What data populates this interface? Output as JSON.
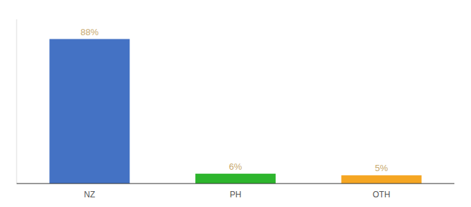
{
  "chart_data": {
    "type": "bar",
    "categories": [
      "NZ",
      "PH",
      "OTH"
    ],
    "values": [
      88,
      6,
      5
    ],
    "value_labels": [
      "88%",
      "6%",
      "5%"
    ],
    "colors": [
      "#4472c4",
      "#2db52d",
      "#f5a623"
    ],
    "ylim": [
      0,
      100
    ],
    "grid": false,
    "data_labels": true,
    "tick_labels": "x"
  }
}
